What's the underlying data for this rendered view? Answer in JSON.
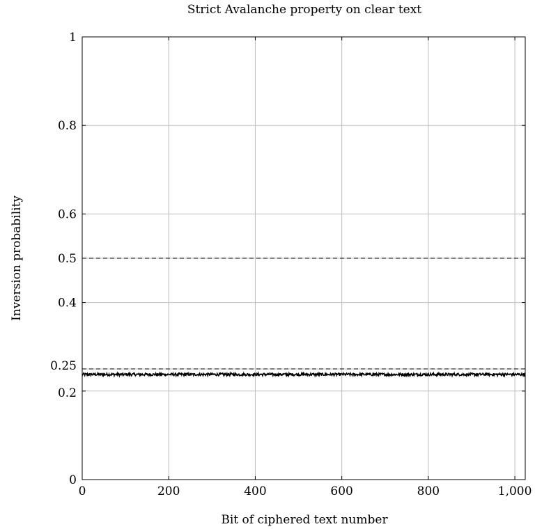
{
  "chart_data": {
    "type": "line",
    "title": "Strict Avalanche property on clear text",
    "xlabel": "Bit of ciphered text number",
    "ylabel": "Inversion probability",
    "xlim": [
      0,
      1024
    ],
    "ylim": [
      0,
      1
    ],
    "xticks": [
      0,
      200,
      400,
      600,
      800,
      1000
    ],
    "xtick_labels": [
      "0",
      "200",
      "400",
      "600",
      "800",
      "1,000"
    ],
    "yticks": [
      0,
      0.2,
      0.25,
      0.4,
      0.5,
      0.6,
      0.8,
      1
    ],
    "ytick_labels": [
      "0",
      "0.2",
      "0.25",
      "0.4",
      "0.5",
      "0.6",
      "0.8",
      "1"
    ],
    "grid": true,
    "reference_lines": [
      {
        "y": 0.5,
        "style": "dashed"
      },
      {
        "y": 0.25,
        "style": "dashed"
      }
    ],
    "series": [
      {
        "style": "solid",
        "x_range": [
          0,
          1024
        ],
        "mean": 0.2375,
        "noise_amplitude": 0.003,
        "color": "#000000"
      }
    ]
  }
}
